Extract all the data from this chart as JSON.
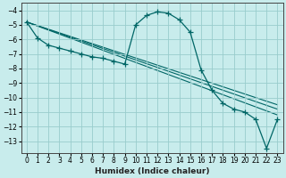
{
  "title": "",
  "xlabel": "Humidex (Indice chaleur)",
  "background_color": "#c8ecec",
  "grid_color": "#99cccc",
  "line_color": "#006666",
  "xlim": [
    -0.5,
    23.5
  ],
  "ylim": [
    -13.8,
    -3.5
  ],
  "xticks": [
    0,
    1,
    2,
    3,
    4,
    5,
    6,
    7,
    8,
    9,
    10,
    11,
    12,
    13,
    14,
    15,
    16,
    17,
    18,
    19,
    20,
    21,
    22,
    23
  ],
  "yticks": [
    -4,
    -5,
    -6,
    -7,
    -8,
    -9,
    -10,
    -11,
    -12,
    -13
  ],
  "curve_x": [
    0,
    1,
    2,
    3,
    4,
    5,
    6,
    7,
    8,
    9,
    10,
    11,
    12,
    13,
    14,
    15,
    16,
    17,
    18,
    19,
    20,
    21,
    22,
    23
  ],
  "curve_y": [
    -4.8,
    -5.9,
    -6.4,
    -6.6,
    -6.8,
    -7.0,
    -7.2,
    -7.3,
    -7.5,
    -7.7,
    -5.0,
    -4.35,
    -4.1,
    -4.2,
    -4.65,
    -5.5,
    -8.1,
    -9.5,
    -10.4,
    -10.8,
    -11.0,
    -11.5,
    -13.5,
    -11.5
  ],
  "linear_lines": [
    [
      -4.8,
      -7.2
    ],
    [
      -4.8,
      -7.6
    ],
    [
      -4.8,
      -8.0
    ],
    [
      -4.8,
      -10.8
    ]
  ],
  "linear_x_start": 0,
  "linear_x_end": 23
}
